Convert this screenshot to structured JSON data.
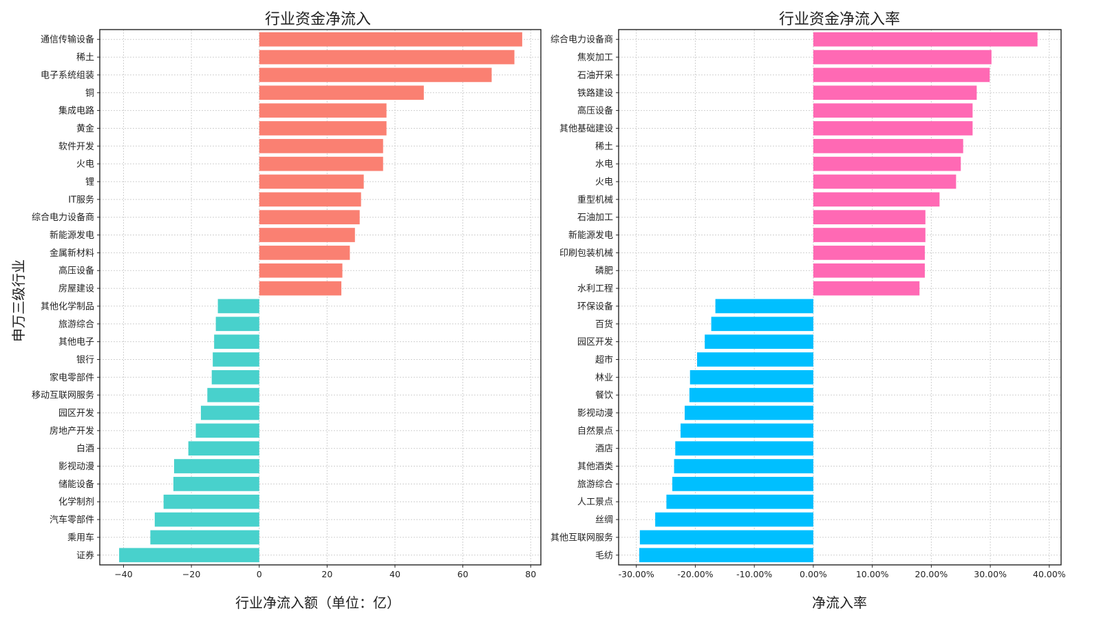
{
  "chart_data": [
    {
      "type": "bar",
      "orientation": "horizontal",
      "title": "行业资金净流入",
      "xlabel": "行业净流入额（单位：亿）",
      "ylabel": "申万三级行业",
      "xlim": [
        -47,
        83
      ],
      "xticks": [
        -40,
        -20,
        0,
        20,
        40,
        60,
        80
      ],
      "xtick_labels": [
        "−40",
        "−20",
        "0",
        "20",
        "40",
        "60",
        "80"
      ],
      "positive_color": "#fa8072",
      "negative_color": "#48d1cc",
      "categories": [
        "通信传输设备",
        "稀土",
        "电子系统组装",
        "铜",
        "集成电路",
        "黄金",
        "软件开发",
        "火电",
        "锂",
        "IT服务",
        "综合电力设备商",
        "新能源发电",
        "金属新材料",
        "高压设备",
        "房屋建设",
        "其他化学制品",
        "旅游综合",
        "其他电子",
        "银行",
        "家电零部件",
        "移动互联网服务",
        "园区开发",
        "房地产开发",
        "白酒",
        "影视动漫",
        "储能设备",
        "化学制剂",
        "汽车零部件",
        "乘用车",
        "证券"
      ],
      "values": [
        77.5,
        75.2,
        68.5,
        48.5,
        37.5,
        37.5,
        36.5,
        36.5,
        30.8,
        30.0,
        29.6,
        28.2,
        26.7,
        24.5,
        24.2,
        -12.2,
        -12.8,
        -13.3,
        -13.7,
        -14.0,
        -15.3,
        -17.2,
        -18.7,
        -20.9,
        -25.1,
        -25.3,
        -28.2,
        -30.8,
        -32.1,
        -41.3
      ]
    },
    {
      "type": "bar",
      "orientation": "horizontal",
      "title": "行业资金净流入率",
      "xlabel": "净流入率",
      "xlim": [
        -33,
        42
      ],
      "xticks": [
        -30,
        -20,
        -10,
        0,
        10,
        20,
        30,
        40
      ],
      "xtick_labels": [
        "-30.00%",
        "-20.00%",
        "-10.00%",
        "0.00%",
        "10.00%",
        "20.00%",
        "30.00%",
        "40.00%"
      ],
      "positive_color": "#ff69b4",
      "negative_color": "#00bfff",
      "categories": [
        "综合电力设备商",
        "焦炭加工",
        "石油开采",
        "铁路建设",
        "高压设备",
        "其他基础建设",
        "稀土",
        "水电",
        "火电",
        "重型机械",
        "石油加工",
        "新能源发电",
        "印刷包装机械",
        "磷肥",
        "水利工程",
        "环保设备",
        "百货",
        "园区开发",
        "超市",
        "林业",
        "餐饮",
        "影视动漫",
        "自然景点",
        "酒店",
        "其他酒类",
        "旅游综合",
        "人工景点",
        "丝绸",
        "其他互联网服务",
        "毛纺"
      ],
      "values": [
        38.0,
        30.2,
        29.9,
        27.7,
        27.0,
        27.0,
        25.4,
        25.0,
        24.2,
        21.4,
        19.0,
        19.0,
        18.9,
        18.9,
        18.0,
        -16.6,
        -17.3,
        -18.4,
        -19.7,
        -20.9,
        -21.0,
        -21.8,
        -22.5,
        -23.4,
        -23.6,
        -23.9,
        -24.9,
        -26.8,
        -29.4,
        -29.5
      ]
    }
  ]
}
